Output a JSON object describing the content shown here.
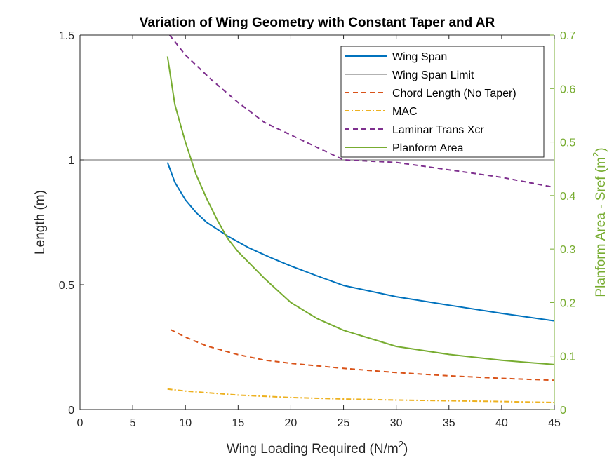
{
  "chart_data": {
    "type": "line",
    "title": "Variation of Wing Geometry with Constant Taper and AR",
    "xlabel": "Wing Loading Required (N/m",
    "xlabel_sup": "2",
    "xlabel_end": ")",
    "ylabel": "Length (m)",
    "y2label": "Planform Area - Sref (m",
    "y2label_sup": "2",
    "y2label_end": ")",
    "xlim": [
      0,
      45
    ],
    "ylim": [
      0,
      1.5
    ],
    "y2lim": [
      0,
      0.7
    ],
    "xticks": [
      0,
      5,
      10,
      15,
      20,
      25,
      30,
      35,
      40,
      45
    ],
    "yticks": [
      0,
      0.5,
      1,
      1.5
    ],
    "y2ticks": [
      0,
      0.1,
      0.2,
      0.3,
      0.4,
      0.5,
      0.6,
      0.7
    ],
    "xtick_labels": [
      "0",
      "5",
      "10",
      "15",
      "20",
      "25",
      "30",
      "35",
      "40",
      "45"
    ],
    "ytick_labels": [
      "0",
      "0.5",
      "1",
      "1.5"
    ],
    "y2tick_labels": [
      "0",
      "0.1",
      "0.2",
      "0.3",
      "0.4",
      "0.5",
      "0.6",
      "0.7"
    ],
    "grid": false,
    "legend_position": "top-right",
    "colors": {
      "wing_span": "#0072BD",
      "wing_span_limit": "#333333",
      "chord": "#D95319",
      "mac": "#EDB120",
      "laminar": "#7E2F8E",
      "planform": "#77AC30",
      "right_axis": "#77AC30"
    },
    "series": [
      {
        "name": "Wing Span",
        "axis": "left",
        "style": "solid",
        "x": [
          8.3,
          9,
          10,
          11,
          12,
          14,
          16,
          18,
          20,
          22.5,
          25,
          30,
          35,
          40,
          45
        ],
        "y": [
          0.99,
          0.91,
          0.84,
          0.79,
          0.75,
          0.695,
          0.648,
          0.61,
          0.575,
          0.535,
          0.497,
          0.452,
          0.418,
          0.385,
          0.355
        ]
      },
      {
        "name": "Wing Span Limit",
        "axis": "left",
        "style": "solid-thin",
        "x": [
          0,
          45
        ],
        "y": [
          1,
          1
        ]
      },
      {
        "name": "Chord Length (No Taper)",
        "axis": "left",
        "style": "dashed",
        "x": [
          8.6,
          10,
          12,
          15,
          17.5,
          20,
          25,
          30,
          35,
          40,
          45
        ],
        "y": [
          0.32,
          0.29,
          0.255,
          0.22,
          0.198,
          0.185,
          0.165,
          0.148,
          0.135,
          0.125,
          0.117
        ]
      },
      {
        "name": "MAC",
        "axis": "left",
        "style": "dash-dot",
        "x": [
          8.3,
          10,
          15,
          20,
          25,
          30,
          35,
          40,
          45
        ],
        "y": [
          0.082,
          0.074,
          0.058,
          0.048,
          0.042,
          0.038,
          0.035,
          0.032,
          0.028
        ]
      },
      {
        "name": "Laminar Trans Xcr",
        "axis": "left",
        "style": "dashed",
        "x": [
          8.5,
          10,
          12.5,
          15,
          17.5,
          20,
          25,
          30,
          35,
          40,
          45
        ],
        "y": [
          1.5,
          1.42,
          1.32,
          1.23,
          1.15,
          1.1,
          1.0,
          0.99,
          0.96,
          0.93,
          0.89
        ]
      },
      {
        "name": "Planform Area",
        "axis": "right",
        "style": "solid",
        "x": [
          8.3,
          9,
          10,
          11,
          12,
          13,
          14,
          15,
          17.5,
          20,
          22.5,
          25,
          30,
          35,
          40,
          45
        ],
        "y": [
          0.66,
          0.57,
          0.5,
          0.44,
          0.395,
          0.355,
          0.32,
          0.295,
          0.245,
          0.2,
          0.17,
          0.148,
          0.118,
          0.103,
          0.092,
          0.084
        ]
      }
    ]
  }
}
